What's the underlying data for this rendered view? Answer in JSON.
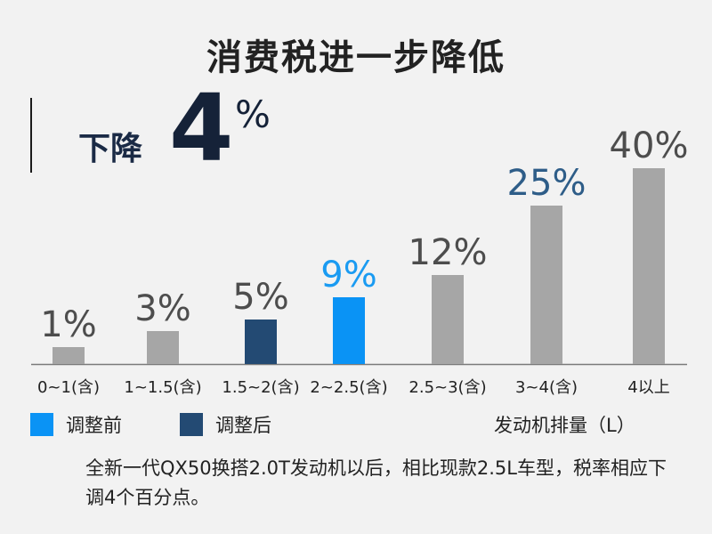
{
  "title": "消费税进一步降低",
  "callout": {
    "text": "下降",
    "number": "4",
    "unit": "%"
  },
  "chart_data": {
    "type": "bar",
    "categories": [
      "0~1(含)",
      "1~1.5(含)",
      "1.5~2(含)",
      "2~2.5(含)",
      "2.5~3(含)",
      "3~4(含)",
      "4以上"
    ],
    "values": [
      1,
      3,
      5,
      9,
      12,
      25,
      40
    ],
    "value_labels": [
      "1%",
      "3%",
      "5%",
      "9%",
      "12%",
      "25%",
      "40%"
    ],
    "bar_group": [
      "default",
      "default",
      "after",
      "before",
      "default",
      "default",
      "default"
    ],
    "xlabel": "发动机排量（L）",
    "colors": {
      "default": "#a6a6a6",
      "before": "#0a93f5",
      "after": "#234a73",
      "label_default": "#4d4d4d",
      "label_25": "#2e5d88",
      "label_before": "#1a9bf2"
    },
    "scale": "non-linear (compressed at high values)",
    "grid": false
  },
  "legend": [
    {
      "label": "调整前",
      "color": "#0a93f5"
    },
    {
      "label": "调整后",
      "color": "#234a73"
    }
  ],
  "note": "全新一代QX50换搭2.0T发动机以后，相比现款2.5L车型，税率相应下调4个百分点。"
}
